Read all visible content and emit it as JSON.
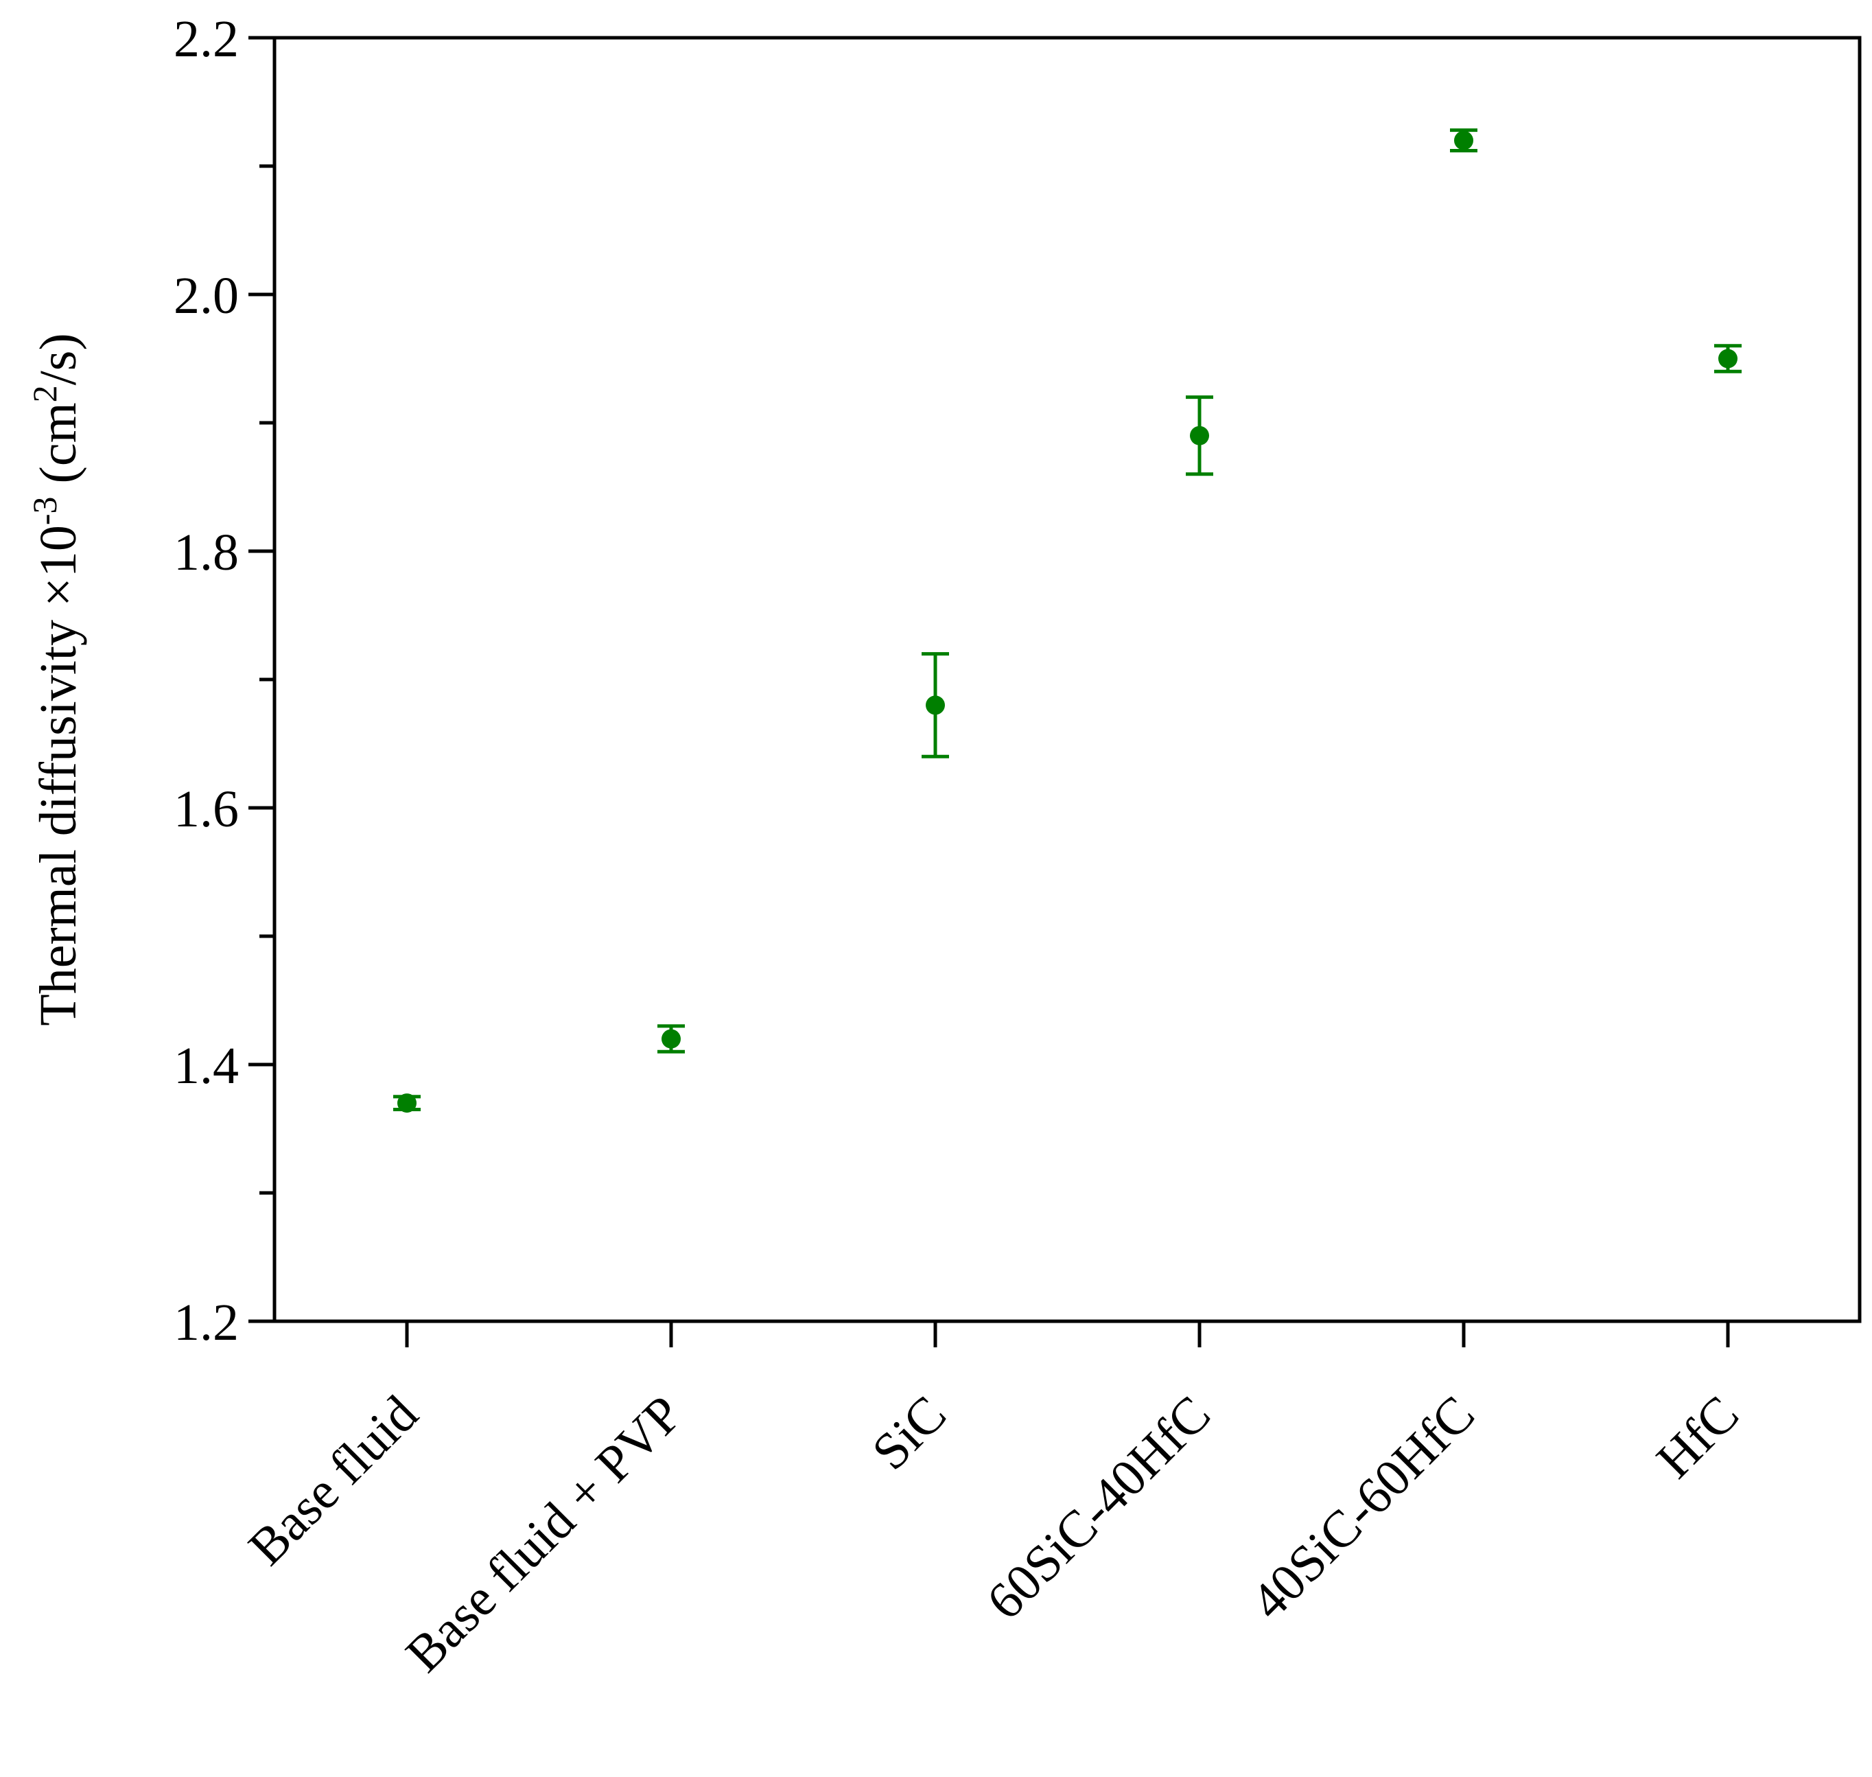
{
  "chart_data": {
    "type": "scatter",
    "title": "",
    "xlabel": "",
    "ylabel": {
      "main": "Thermal diffusivity ×10",
      "exp": "-3",
      "unit_open": " (cm",
      "unit_exp": "2",
      "unit_close": "/s)"
    },
    "ylim": [
      1.2,
      2.2
    ],
    "yticks": [
      "1.2",
      "1.4",
      "1.6",
      "1.8",
      "2.0",
      "2.2"
    ],
    "categories": [
      "Base fluid",
      "Base fluid + PVP",
      "SiC",
      "60SiC-40HfC",
      "40SiC-60HfC",
      "HfC"
    ],
    "series": [
      {
        "values": [
          1.37,
          1.42,
          1.68,
          1.89,
          2.12,
          1.95
        ],
        "errors": [
          0.005,
          0.01,
          0.04,
          0.03,
          0.008,
          0.01
        ],
        "color": "#007f00"
      }
    ],
    "grid": false,
    "legend": "none"
  }
}
